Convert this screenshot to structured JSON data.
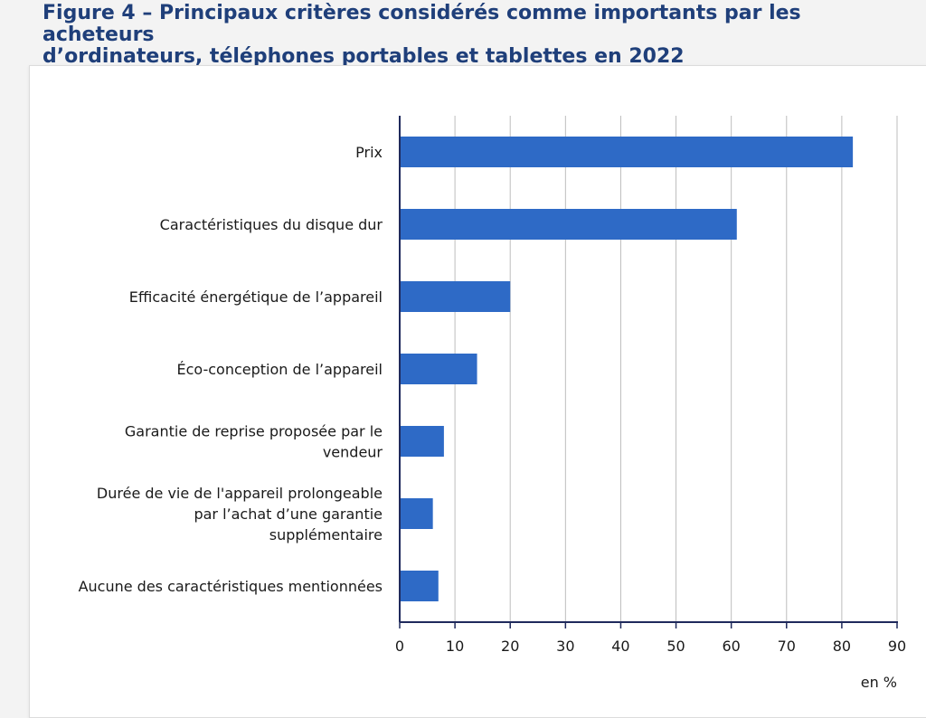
{
  "figure": {
    "title_line1": "Figure 4 – Principaux critères considérés comme importants par les acheteurs",
    "title_line2": "d’ordinateurs, téléphones portables et tablettes en 2022"
  },
  "colors": {
    "bar": "#2e6ac6",
    "axis": "#1f2a5c",
    "grid": "#bdbdbd",
    "title": "#1f3f7a"
  },
  "chart_data": {
    "type": "bar",
    "orientation": "horizontal",
    "title": "Figure 4 – Principaux critères considérés comme importants par les acheteurs d’ordinateurs, téléphones portables et tablettes en 2022",
    "categories": [
      "Prix",
      "Caractéristiques du disque dur",
      "Efficacité énergétique de l’appareil",
      "Éco-conception de l’appareil",
      "Garantie de reprise proposée par le vendeur",
      "Durée de vie de l'appareil prolongeable par l’achat d’une garantie supplémentaire",
      "Aucune des caractéristiques mentionnées"
    ],
    "category_lines": [
      [
        "Prix"
      ],
      [
        "Caractéristiques du disque dur"
      ],
      [
        "Efficacité énergétique de l’appareil"
      ],
      [
        "Éco-conception de l’appareil"
      ],
      [
        "Garantie de reprise proposée par le",
        "vendeur"
      ],
      [
        "Durée de vie de l'appareil prolongeable",
        "par l’achat d’une garantie",
        "supplémentaire"
      ],
      [
        "Aucune des caractéristiques mentionnées"
      ]
    ],
    "values": [
      82,
      61,
      20,
      14,
      8,
      6,
      7
    ],
    "xlim": [
      0,
      90
    ],
    "xticks": [
      "0",
      "10",
      "20",
      "30",
      "40",
      "50",
      "60",
      "70",
      "80",
      "90"
    ],
    "unit_label": "en %",
    "grid": true,
    "legend": "none"
  }
}
